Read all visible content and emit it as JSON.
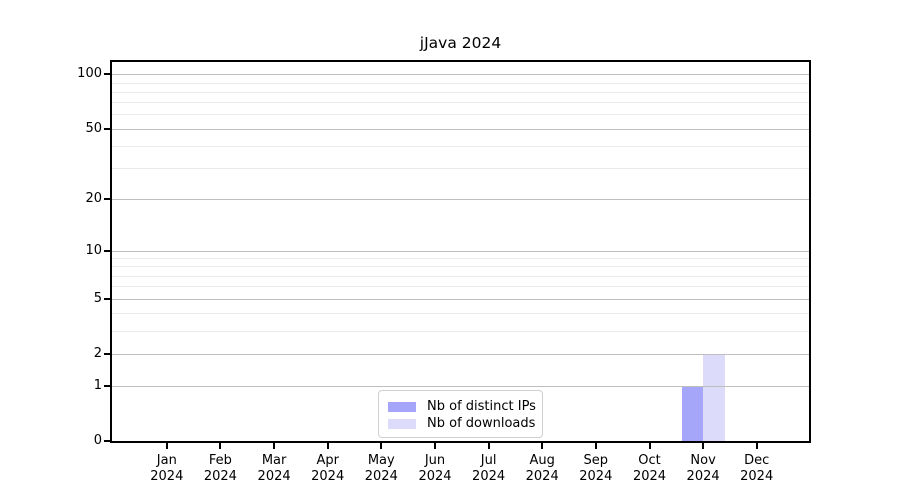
{
  "title": "jJava 2024",
  "colors": {
    "bar_distinct_ips": "#a5a5fa",
    "bar_downloads": "#dcdcfa",
    "grid_major": "#bebebe",
    "grid_minor": "#eaeaea",
    "axis": "#000000",
    "text": "#000000",
    "legend_border": "#d0d0d0",
    "background": "#ffffff"
  },
  "legend": {
    "position": "lower center",
    "items": [
      {
        "label": "Nb of distinct IPs",
        "color": "#a5a5fa"
      },
      {
        "label": "Nb of downloads",
        "color": "#dcdcfa"
      }
    ]
  },
  "chart_data": {
    "type": "bar",
    "title": "jJava 2024",
    "categories": [
      "Jan 2024",
      "Feb 2024",
      "Mar 2024",
      "Apr 2024",
      "May 2024",
      "Jun 2024",
      "Jul 2024",
      "Aug 2024",
      "Sep 2024",
      "Oct 2024",
      "Nov 2024",
      "Dec 2024"
    ],
    "series": [
      {
        "name": "Nb of distinct IPs",
        "color": "#a5a5fa",
        "values": [
          0,
          0,
          0,
          0,
          0,
          0,
          0,
          0,
          0,
          0,
          1,
          0
        ]
      },
      {
        "name": "Nb of downloads",
        "color": "#dcdcfa",
        "values": [
          0,
          0,
          0,
          0,
          0,
          0,
          0,
          0,
          0,
          0,
          2,
          0
        ]
      }
    ],
    "xlabel": "",
    "ylabel": "",
    "yscale": "log1p",
    "ylim": [
      0,
      117
    ],
    "y_major_ticks": [
      0,
      1,
      2,
      5,
      10,
      20,
      50,
      100
    ],
    "y_minor_ticks": [
      3,
      4,
      6,
      7,
      8,
      9,
      30,
      40,
      60,
      70,
      80,
      90
    ],
    "grid": true,
    "legend_position": "lower center"
  }
}
